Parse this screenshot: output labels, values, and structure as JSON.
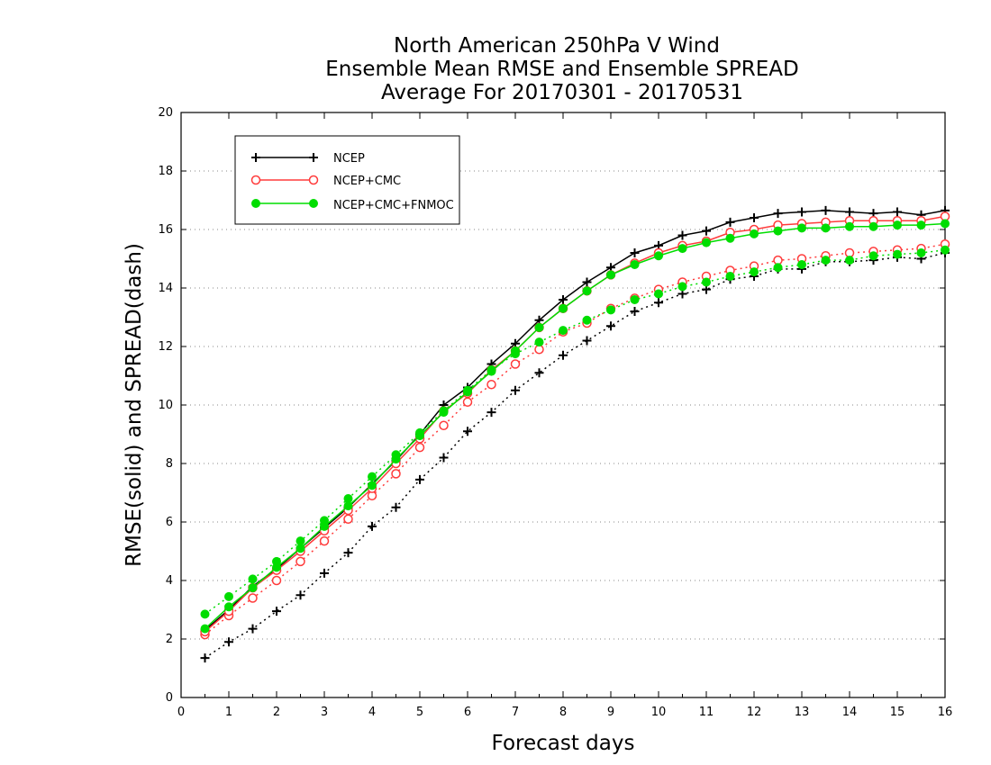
{
  "chart_data": {
    "type": "line",
    "title_lines": [
      "North American 250hPa V Wind",
      "Ensemble Mean RMSE and Ensemble SPREAD",
      "Average For 20170301 - 20170531"
    ],
    "xlabel": "Forecast days",
    "ylabel": "RMSE(solid) and SPREAD(dash)",
    "xlim": [
      0,
      16
    ],
    "ylim": [
      0,
      20
    ],
    "x_ticks": [
      0,
      1,
      2,
      3,
      4,
      5,
      6,
      7,
      8,
      9,
      10,
      11,
      12,
      13,
      14,
      15,
      16
    ],
    "y_ticks": [
      0,
      2,
      4,
      6,
      8,
      10,
      12,
      14,
      16,
      18,
      20
    ],
    "grid": "dotted horizontal",
    "legend_position": "top-left",
    "x": [
      0.5,
      1,
      1.5,
      2,
      2.5,
      3,
      3.5,
      4,
      4.5,
      5,
      5.5,
      6,
      6.5,
      7,
      7.5,
      8,
      8.5,
      9,
      9.5,
      10,
      10.5,
      11,
      11.5,
      12,
      12.5,
      13,
      13.5,
      14,
      14.5,
      15,
      15.5,
      16
    ],
    "series": [
      {
        "name": "NCEP",
        "color": "#000000",
        "marker": "plus",
        "rmse": [
          2.3,
          3.0,
          3.8,
          4.4,
          5.1,
          5.8,
          6.5,
          7.3,
          8.1,
          9.0,
          10.0,
          10.6,
          11.4,
          12.1,
          12.9,
          13.6,
          14.2,
          14.7,
          15.2,
          15.45,
          15.8,
          15.95,
          16.25,
          16.4,
          16.55,
          16.6,
          16.65,
          16.6,
          16.55,
          16.6,
          16.5,
          16.65
        ],
        "spread": [
          1.35,
          1.9,
          2.35,
          2.95,
          3.5,
          4.25,
          4.95,
          5.85,
          6.5,
          7.45,
          8.2,
          9.1,
          9.75,
          10.5,
          11.1,
          11.7,
          12.2,
          12.7,
          13.2,
          13.5,
          13.8,
          13.95,
          14.3,
          14.4,
          14.65,
          14.65,
          14.9,
          14.9,
          14.95,
          15.05,
          15.0,
          15.2
        ]
      },
      {
        "name": "NCEP+CMC",
        "color": "#ff3b3b",
        "marker": "open-circle",
        "rmse": [
          2.25,
          2.95,
          3.75,
          4.35,
          5.0,
          5.7,
          6.4,
          7.15,
          8.0,
          8.85,
          9.8,
          10.4,
          11.2,
          11.85,
          12.65,
          13.3,
          13.9,
          14.45,
          14.85,
          15.2,
          15.45,
          15.6,
          15.9,
          16.0,
          16.15,
          16.2,
          16.25,
          16.3,
          16.3,
          16.3,
          16.3,
          16.45
        ],
        "spread": [
          2.15,
          2.8,
          3.4,
          4.0,
          4.65,
          5.35,
          6.1,
          6.9,
          7.65,
          8.55,
          9.3,
          10.1,
          10.7,
          11.4,
          11.9,
          12.5,
          12.8,
          13.3,
          13.65,
          13.95,
          14.2,
          14.4,
          14.6,
          14.75,
          14.95,
          15.0,
          15.1,
          15.2,
          15.25,
          15.3,
          15.35,
          15.5
        ]
      },
      {
        "name": "NCEP+CMC+FNMOC",
        "color": "#00dd00",
        "marker": "filled-circle",
        "rmse": [
          2.35,
          3.1,
          3.75,
          4.45,
          5.1,
          5.85,
          6.55,
          7.25,
          8.15,
          8.95,
          9.75,
          10.45,
          11.15,
          11.85,
          12.65,
          13.3,
          13.9,
          14.45,
          14.8,
          15.1,
          15.35,
          15.55,
          15.7,
          15.85,
          15.95,
          16.05,
          16.05,
          16.1,
          16.1,
          16.15,
          16.15,
          16.2
        ],
        "spread": [
          2.85,
          3.45,
          4.05,
          4.65,
          5.35,
          6.05,
          6.8,
          7.55,
          8.3,
          9.05,
          9.8,
          10.5,
          11.2,
          11.75,
          12.15,
          12.55,
          12.9,
          13.25,
          13.6,
          13.8,
          14.05,
          14.2,
          14.4,
          14.55,
          14.7,
          14.8,
          14.95,
          14.95,
          15.1,
          15.15,
          15.2,
          15.3
        ]
      }
    ]
  }
}
